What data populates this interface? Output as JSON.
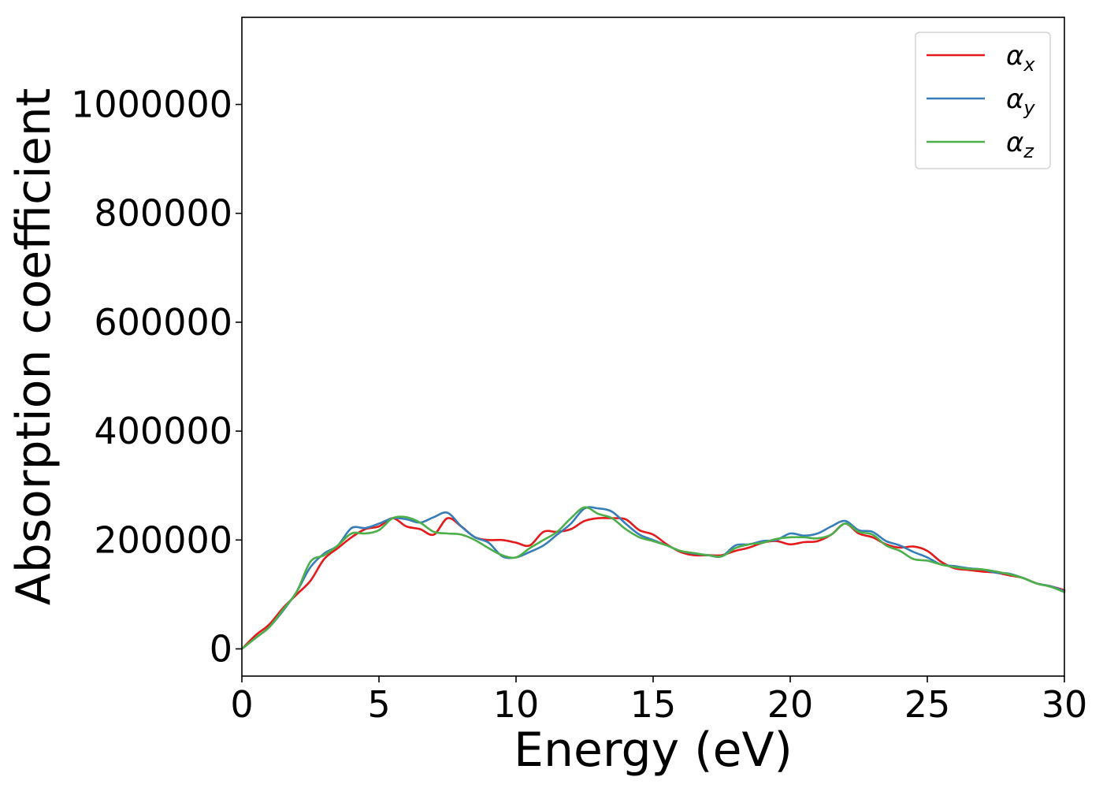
{
  "chart_data": {
    "type": "line",
    "title": "",
    "xlabel": "Energy (eV)",
    "ylabel": "Absorption coefficient",
    "xlim": [
      0,
      30
    ],
    "ylim": [
      -50000,
      1160000
    ],
    "x_ticks": [
      0,
      5,
      10,
      15,
      20,
      25,
      30
    ],
    "y_ticks": [
      0,
      200000,
      400000,
      600000,
      800000,
      1000000
    ],
    "grid": false,
    "legend_position": "top-right",
    "x": [
      0,
      0.5,
      1,
      1.5,
      2,
      2.5,
      3,
      3.5,
      4,
      4.5,
      5,
      5.5,
      6,
      6.5,
      7,
      7.5,
      8,
      8.5,
      9,
      9.5,
      10,
      10.5,
      11,
      11.5,
      12,
      12.5,
      13,
      13.5,
      14,
      14.5,
      15,
      15.5,
      16,
      16.5,
      17,
      17.5,
      18,
      18.5,
      19,
      19.5,
      20,
      20.5,
      21,
      21.5,
      22,
      22.5,
      23,
      23.5,
      24,
      24.5,
      25,
      25.5,
      26,
      26.5,
      27,
      27.5,
      28,
      28.5,
      29,
      29.5,
      30
    ],
    "series": [
      {
        "name": "α",
        "subscript": "x",
        "color": "#e41a1c",
        "values": [
          0,
          25000,
          45000,
          75000,
          100000,
          125000,
          165000,
          185000,
          205000,
          220000,
          225000,
          240000,
          225000,
          220000,
          210000,
          240000,
          225000,
          205000,
          200000,
          200000,
          195000,
          190000,
          215000,
          215000,
          220000,
          235000,
          240000,
          240000,
          238000,
          218000,
          210000,
          192000,
          178000,
          172000,
          172000,
          172000,
          180000,
          186000,
          195000,
          198000,
          192000,
          196000,
          198000,
          210000,
          230000,
          212000,
          205000,
          192000,
          186000,
          188000,
          180000,
          160000,
          148000,
          145000,
          142000,
          140000,
          135000,
          130000,
          120000,
          115000,
          108000
        ]
      },
      {
        "name": "α",
        "subscript": "y",
        "color": "#377eb8",
        "values": [
          0,
          20000,
          40000,
          70000,
          105000,
          150000,
          175000,
          190000,
          222000,
          222000,
          230000,
          240000,
          238000,
          232000,
          242000,
          250000,
          225000,
          205000,
          195000,
          170000,
          168000,
          178000,
          190000,
          210000,
          230000,
          258000,
          258000,
          252000,
          230000,
          210000,
          200000,
          190000,
          180000,
          175000,
          172000,
          170000,
          190000,
          192000,
          198000,
          200000,
          212000,
          208000,
          212000,
          225000,
          235000,
          218000,
          215000,
          198000,
          190000,
          178000,
          168000,
          155000,
          152000,
          148000,
          146000,
          140000,
          138000,
          130000,
          120000,
          115000,
          106000
        ]
      },
      {
        "name": "α",
        "subscript": "z",
        "color": "#4daf4a",
        "values": [
          0,
          20000,
          40000,
          72000,
          105000,
          160000,
          172000,
          190000,
          212000,
          212000,
          218000,
          240000,
          242000,
          232000,
          215000,
          212000,
          210000,
          200000,
          185000,
          172000,
          168000,
          185000,
          200000,
          215000,
          240000,
          260000,
          248000,
          240000,
          220000,
          205000,
          198000,
          190000,
          180000,
          176000,
          172000,
          170000,
          185000,
          192000,
          195000,
          202000,
          205000,
          205000,
          203000,
          210000,
          230000,
          215000,
          210000,
          190000,
          180000,
          165000,
          162000,
          155000,
          150000,
          147000,
          146000,
          142000,
          137000,
          130000,
          120000,
          114000,
          104000
        ]
      }
    ]
  }
}
